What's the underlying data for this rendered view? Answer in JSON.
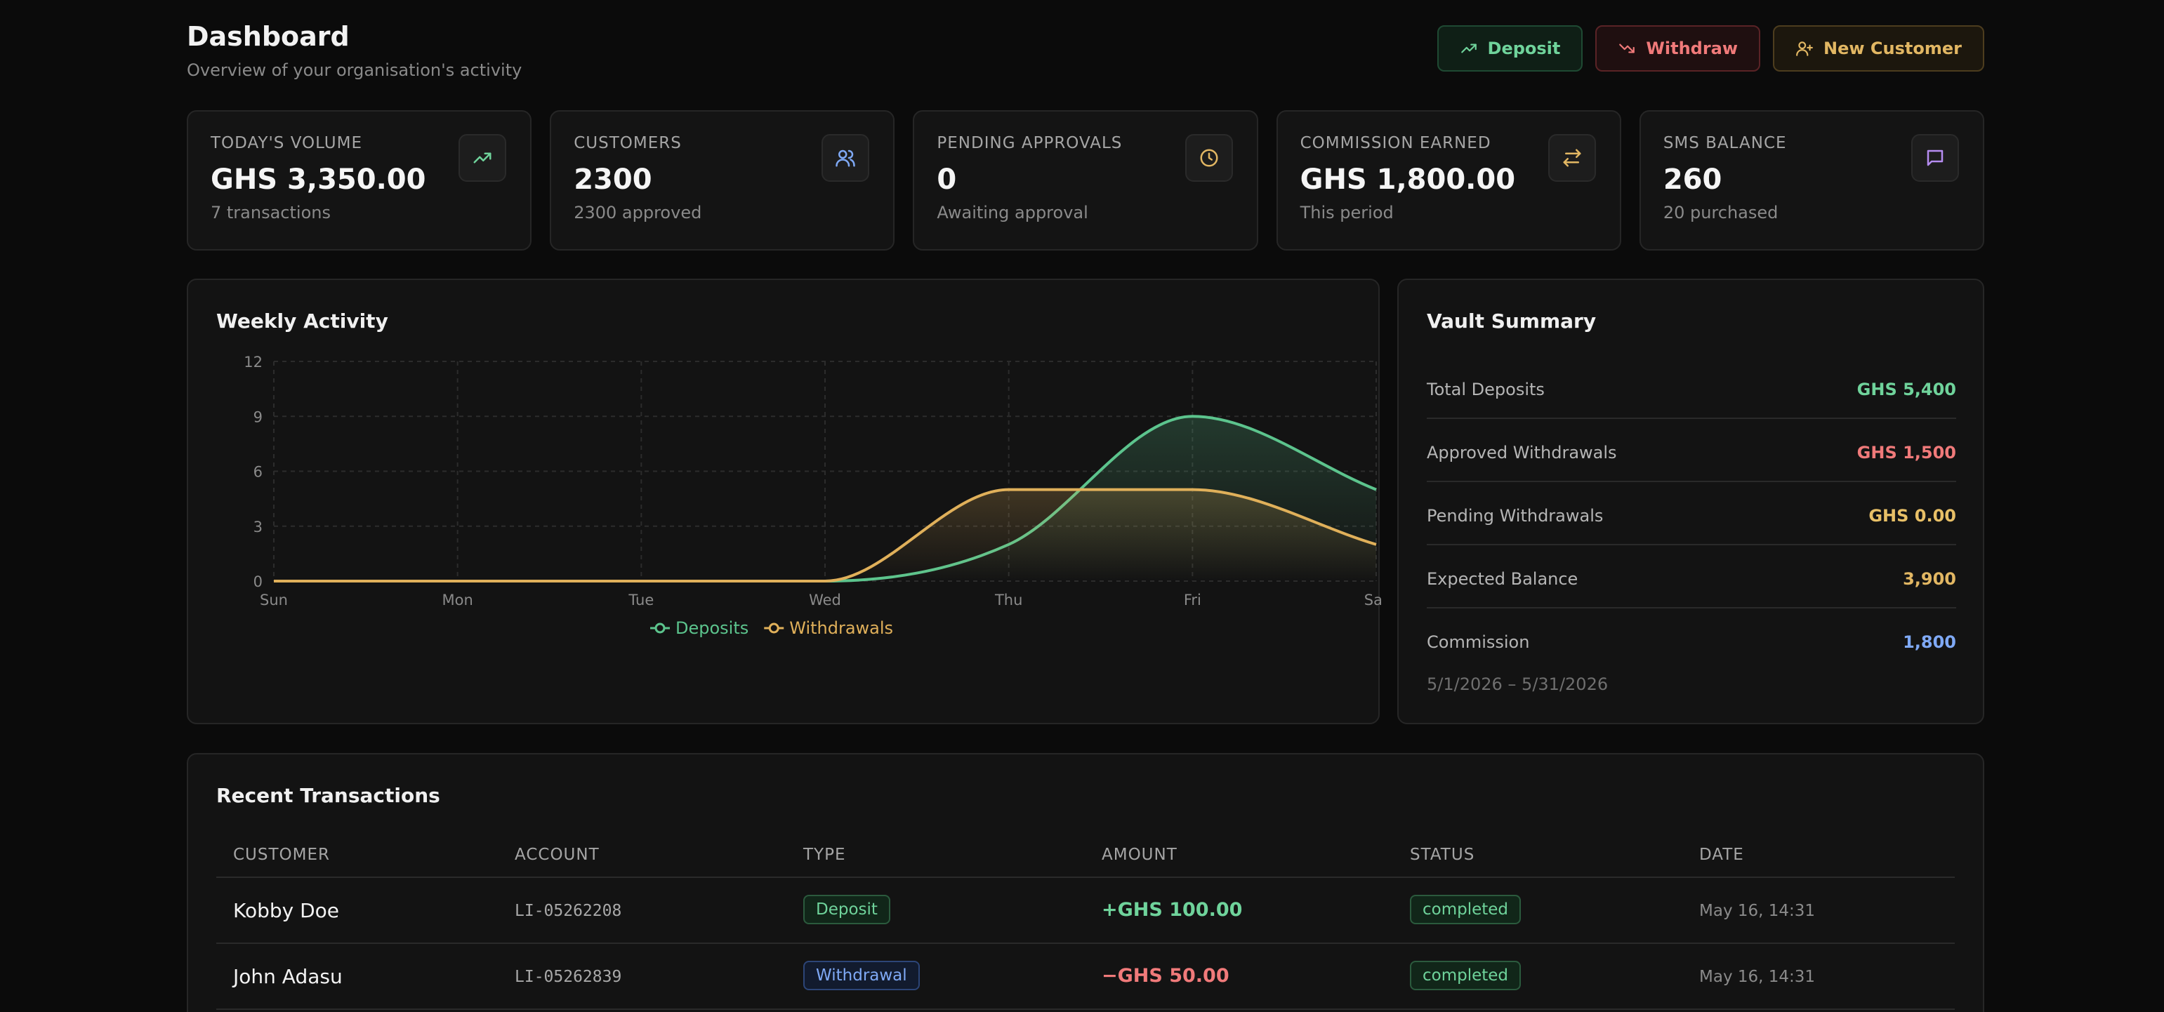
{
  "header": {
    "title": "Dashboard",
    "subtitle": "Overview of your organisation's activity",
    "actions": {
      "deposit_label": "Deposit",
      "withdraw_label": "Withdraw",
      "new_customer_label": "New Customer"
    }
  },
  "stats": [
    {
      "label": "TODAY'S VOLUME",
      "value": "GHS 3,350.00",
      "sub": "7 transactions",
      "icon": "trending-up-icon",
      "color": "#6fd39b"
    },
    {
      "label": "CUSTOMERS",
      "value": "2300",
      "sub": "2300 approved",
      "icon": "users-icon",
      "color": "#7fa9f5"
    },
    {
      "label": "PENDING APPROVALS",
      "value": "0",
      "sub": "Awaiting approval",
      "icon": "clock-icon",
      "color": "#e2b763"
    },
    {
      "label": "COMMISSION EARNED",
      "value": "GHS 1,800.00",
      "sub": "This period",
      "icon": "arrows-swap-icon",
      "color": "#e2b763"
    },
    {
      "label": "SMS BALANCE",
      "value": "260",
      "sub": "20 purchased",
      "icon": "message-icon",
      "color": "#b58cf0"
    }
  ],
  "weekly_activity": {
    "title": "Weekly Activity"
  },
  "chart_data": {
    "type": "area",
    "title": "Weekly Activity",
    "categories": [
      "Sun",
      "Mon",
      "Tue",
      "Wed",
      "Thu",
      "Fri",
      "Sat"
    ],
    "y_ticks": [
      0,
      3,
      6,
      9,
      12
    ],
    "ylim": [
      0,
      12
    ],
    "grid": true,
    "legend_position": "bottom",
    "series": [
      {
        "name": "Deposits",
        "values": [
          0,
          0,
          0,
          0,
          2,
          9,
          5
        ],
        "color": "#5cc48d"
      },
      {
        "name": "Withdrawals",
        "values": [
          0,
          0,
          0,
          0,
          5,
          5,
          2
        ],
        "color": "#e0b05a"
      }
    ]
  },
  "vault": {
    "title": "Vault Summary",
    "rows": [
      {
        "label": "Total Deposits",
        "value": "GHS 5,400",
        "color": "#6fd39b"
      },
      {
        "label": "Approved Withdrawals",
        "value": "GHS 1,500",
        "color": "#f07a7a"
      },
      {
        "label": "Pending Withdrawals",
        "value": "GHS 0.00",
        "color": "#e8c067"
      },
      {
        "label": "Expected Balance",
        "value": "3,900",
        "color": "#e2b763"
      },
      {
        "label": "Commission",
        "value": "1,800",
        "color": "#7fa9f5"
      }
    ],
    "period": "5/1/2026 – 5/31/2026"
  },
  "recent": {
    "title": "Recent Transactions",
    "columns": [
      "CUSTOMER",
      "ACCOUNT",
      "TYPE",
      "AMOUNT",
      "STATUS",
      "DATE"
    ],
    "rows": [
      {
        "customer": "Kobby Doe",
        "account": "LI-05262208",
        "type": "Deposit",
        "amount": "+GHS 100.00",
        "status": "completed",
        "date": "May 16, 14:31",
        "amount_color": "#6fd39b"
      },
      {
        "customer": "John Adasu",
        "account": "LI-05262839",
        "type": "Withdrawal",
        "amount": "−GHS 50.00",
        "status": "completed",
        "date": "May 16, 14:31",
        "amount_color": "#f07a7a"
      }
    ]
  }
}
